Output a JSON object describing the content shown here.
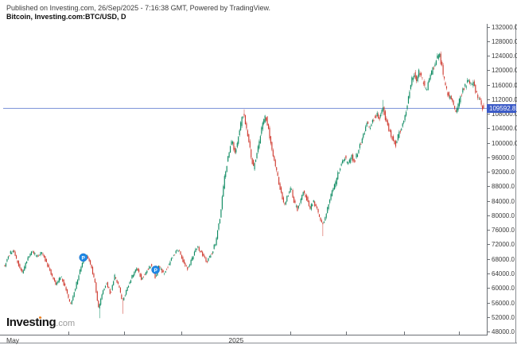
{
  "header": {
    "published_line": "Published on Investing.com, 26/Sep/2025 - 7:16:38 GMT, Powered by TradingView.",
    "symbol_line": "Bitcoin, Investing.com:BTC/USD, D"
  },
  "logo": {
    "name_start": "Invest",
    "name_i": "i",
    "name_end": "ng",
    "suffix": ".com"
  },
  "last_price": {
    "value": "109592.8",
    "line_color": "#637fd0",
    "label_bg": "#3c5bc7",
    "label_text_color": "#ffffff"
  },
  "price_scale": {
    "labels": [
      "132000.0",
      "128000.0",
      "124000.0",
      "120000.0",
      "116000.0",
      "112000.0",
      "108000.0",
      "104000.0",
      "100000.0",
      "96000.0",
      "92000.0",
      "88000.0",
      "84000.0",
      "80000.0",
      "76000.0",
      "72000.0",
      "68000.0",
      "64000.0",
      "60000.0",
      "56000.0",
      "52000.0",
      "48000.0"
    ]
  },
  "time_scale": {
    "labels": [
      {
        "text": "May",
        "t": 0.005,
        "align": "left"
      },
      {
        "text": "2025",
        "t": 0.483,
        "align": "center"
      }
    ],
    "tick_ts": [
      0.133,
      0.249,
      0.368,
      0.597,
      0.713,
      0.834,
      0.949
    ]
  },
  "markers": [
    {
      "label": "P",
      "t": 0.164,
      "price": 68500,
      "color": "#1e88e5"
    },
    {
      "label": "P",
      "t": 0.315,
      "price": 65100,
      "color": "#1e88e5"
    }
  ],
  "chart_data": {
    "type": "candlestick",
    "title": "Bitcoin, Investing.com:BTC/USD, D",
    "symbol": "BTC/USD",
    "timeframe": "D",
    "x_range": {
      "start": "May 2024",
      "end": "26/Sep/2025"
    },
    "ylim": [
      48000,
      132000
    ],
    "y_tick_step": 4000,
    "grid": false,
    "last_price": 109592.8,
    "up_color": "#0d8a61",
    "down_color": "#cf3b30",
    "price_path": [
      [
        0.0,
        66000
      ],
      [
        0.008,
        69000
      ],
      [
        0.018,
        70500
      ],
      [
        0.028,
        67000
      ],
      [
        0.038,
        64000
      ],
      [
        0.048,
        68000
      ],
      [
        0.058,
        70500
      ],
      [
        0.068,
        68500
      ],
      [
        0.078,
        70000
      ],
      [
        0.088,
        67000
      ],
      [
        0.098,
        64000
      ],
      [
        0.108,
        61000
      ],
      [
        0.118,
        63500
      ],
      [
        0.128,
        60000
      ],
      [
        0.138,
        55500
      ],
      [
        0.146,
        59000
      ],
      [
        0.154,
        63000
      ],
      [
        0.164,
        67500
      ],
      [
        0.172,
        69500
      ],
      [
        0.181,
        66500
      ],
      [
        0.189,
        62000
      ],
      [
        0.197,
        54500
      ],
      [
        0.206,
        59500
      ],
      [
        0.214,
        61500
      ],
      [
        0.222,
        58500
      ],
      [
        0.231,
        63500
      ],
      [
        0.239,
        60500
      ],
      [
        0.247,
        56500
      ],
      [
        0.257,
        60000
      ],
      [
        0.267,
        63500
      ],
      [
        0.277,
        65500
      ],
      [
        0.287,
        62500
      ],
      [
        0.297,
        65000
      ],
      [
        0.307,
        66500
      ],
      [
        0.315,
        63000
      ],
      [
        0.323,
        66000
      ],
      [
        0.333,
        64000
      ],
      [
        0.343,
        66500
      ],
      [
        0.353,
        69000
      ],
      [
        0.363,
        71000
      ],
      [
        0.373,
        67500
      ],
      [
        0.383,
        65500
      ],
      [
        0.393,
        68500
      ],
      [
        0.403,
        71500
      ],
      [
        0.413,
        69500
      ],
      [
        0.423,
        67500
      ],
      [
        0.433,
        69500
      ],
      [
        0.441,
        72500
      ],
      [
        0.446,
        76000
      ],
      [
        0.451,
        80000
      ],
      [
        0.456,
        86000
      ],
      [
        0.461,
        91500
      ],
      [
        0.466,
        95000
      ],
      [
        0.471,
        98500
      ],
      [
        0.476,
        101000
      ],
      [
        0.481,
        97500
      ],
      [
        0.486,
        99500
      ],
      [
        0.491,
        103000
      ],
      [
        0.496,
        106500
      ],
      [
        0.501,
        108000
      ],
      [
        0.506,
        104000
      ],
      [
        0.511,
        100000
      ],
      [
        0.516,
        96000
      ],
      [
        0.521,
        93000
      ],
      [
        0.526,
        96500
      ],
      [
        0.531,
        99000
      ],
      [
        0.536,
        103000
      ],
      [
        0.541,
        106000
      ],
      [
        0.546,
        107500
      ],
      [
        0.551,
        104500
      ],
      [
        0.556,
        100500
      ],
      [
        0.561,
        97000
      ],
      [
        0.566,
        94000
      ],
      [
        0.572,
        90000
      ],
      [
        0.579,
        86000
      ],
      [
        0.585,
        83000
      ],
      [
        0.592,
        85500
      ],
      [
        0.599,
        87500
      ],
      [
        0.605,
        84000
      ],
      [
        0.612,
        81500
      ],
      [
        0.619,
        84500
      ],
      [
        0.625,
        87000
      ],
      [
        0.632,
        84500
      ],
      [
        0.638,
        82000
      ],
      [
        0.645,
        84000
      ],
      [
        0.652,
        82500
      ],
      [
        0.658,
        79500
      ],
      [
        0.665,
        77500
      ],
      [
        0.672,
        80500
      ],
      [
        0.678,
        84000
      ],
      [
        0.685,
        86500
      ],
      [
        0.692,
        89000
      ],
      [
        0.698,
        92000
      ],
      [
        0.705,
        94500
      ],
      [
        0.711,
        96000
      ],
      [
        0.718,
        94000
      ],
      [
        0.725,
        96500
      ],
      [
        0.731,
        95000
      ],
      [
        0.738,
        97500
      ],
      [
        0.745,
        100000
      ],
      [
        0.751,
        103000
      ],
      [
        0.758,
        105500
      ],
      [
        0.764,
        104000
      ],
      [
        0.771,
        106500
      ],
      [
        0.778,
        108000
      ],
      [
        0.784,
        107000
      ],
      [
        0.791,
        109500
      ],
      [
        0.798,
        106000
      ],
      [
        0.804,
        103500
      ],
      [
        0.811,
        101000
      ],
      [
        0.818,
        99500
      ],
      [
        0.824,
        102500
      ],
      [
        0.831,
        105000
      ],
      [
        0.836,
        107500
      ],
      [
        0.841,
        110000
      ],
      [
        0.846,
        114000
      ],
      [
        0.851,
        117500
      ],
      [
        0.856,
        119000
      ],
      [
        0.861,
        117500
      ],
      [
        0.866,
        119500
      ],
      [
        0.871,
        118000
      ],
      [
        0.876,
        116500
      ],
      [
        0.881,
        114500
      ],
      [
        0.886,
        116500
      ],
      [
        0.891,
        118500
      ],
      [
        0.896,
        120500
      ],
      [
        0.9,
        122000
      ],
      [
        0.905,
        123500
      ],
      [
        0.909,
        124300
      ],
      [
        0.914,
        121000
      ],
      [
        0.919,
        117500
      ],
      [
        0.924,
        114500
      ],
      [
        0.929,
        112500
      ],
      [
        0.934,
        112000
      ],
      [
        0.939,
        110000
      ],
      [
        0.944,
        108700
      ],
      [
        0.949,
        111000
      ],
      [
        0.954,
        113500
      ],
      [
        0.959,
        115000
      ],
      [
        0.964,
        116200
      ],
      [
        0.969,
        117200
      ],
      [
        0.974,
        116000
      ],
      [
        0.979,
        116800
      ],
      [
        0.984,
        114500
      ],
      [
        0.989,
        112800
      ],
      [
        0.994,
        111200
      ],
      [
        1.0,
        109592.8
      ]
    ],
    "extreme_wicks": [
      {
        "t": 0.197,
        "price": 51800,
        "side": "low"
      },
      {
        "t": 0.247,
        "price": 53000,
        "side": "low"
      },
      {
        "t": 0.665,
        "price": 74400,
        "side": "low"
      },
      {
        "t": 0.501,
        "price": 109300,
        "side": "high"
      },
      {
        "t": 0.791,
        "price": 111900,
        "side": "high"
      },
      {
        "t": 0.909,
        "price": 124900,
        "side": "high"
      }
    ]
  }
}
